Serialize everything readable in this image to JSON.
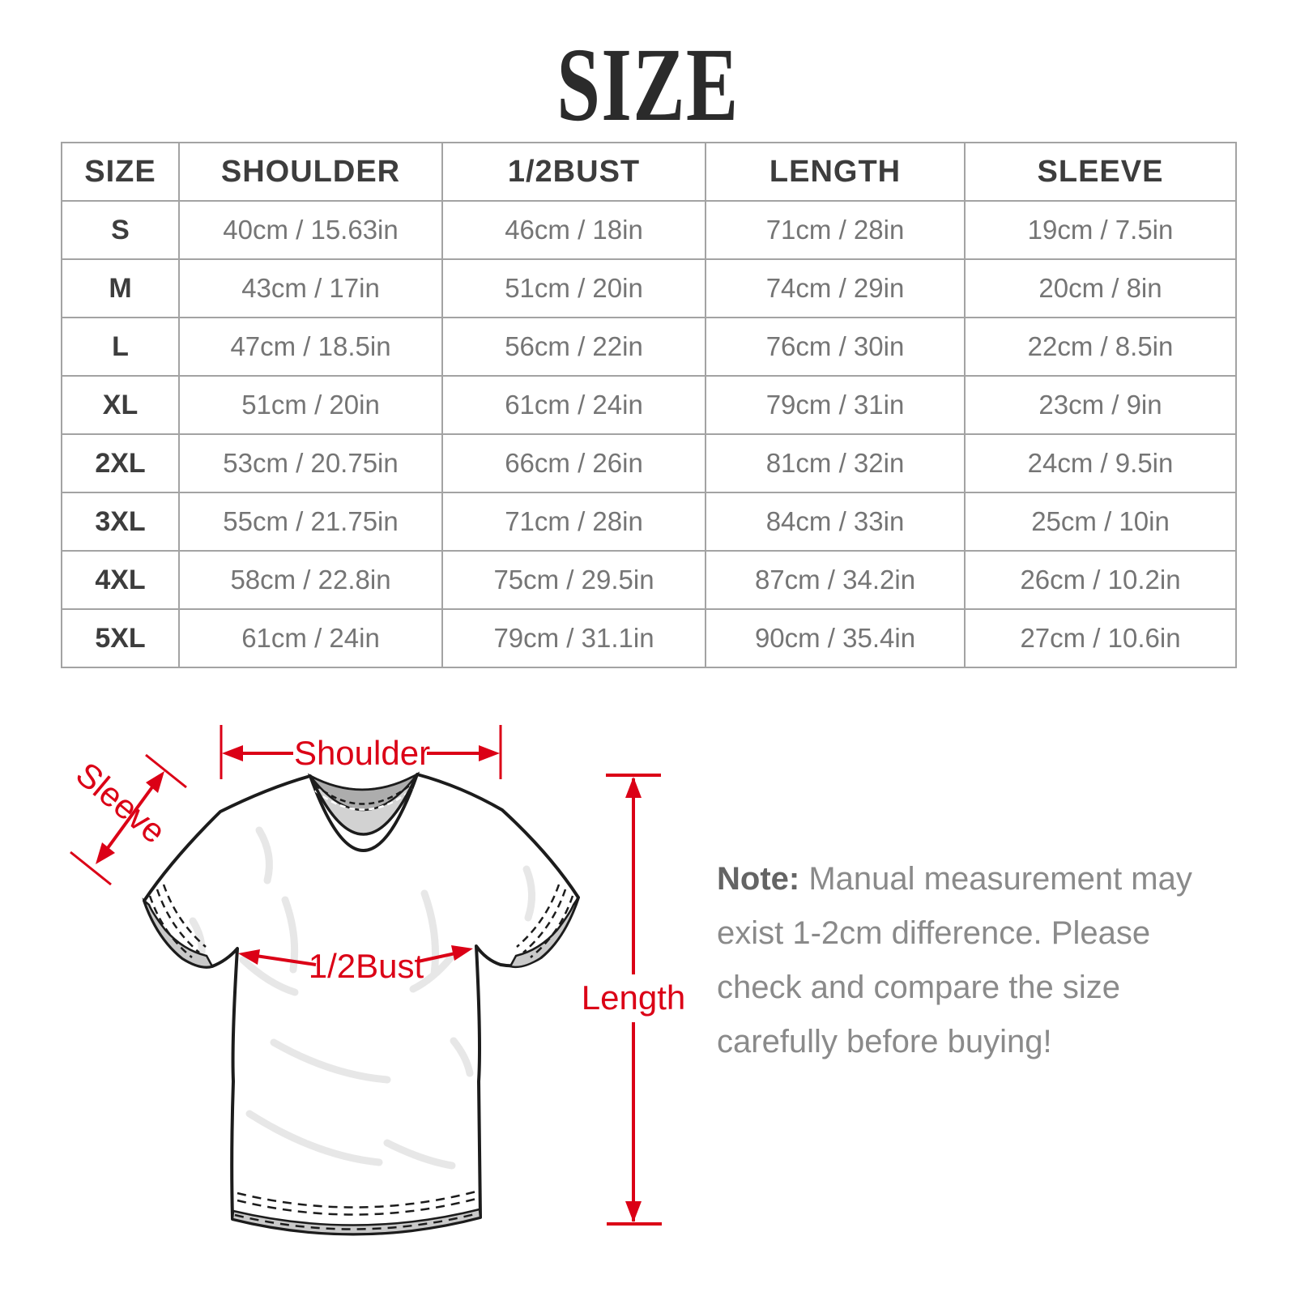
{
  "title": "SIZE",
  "table": {
    "headers": [
      "SIZE",
      "SHOULDER",
      "1/2BUST",
      "LENGTH",
      "SLEEVE"
    ],
    "rows": [
      [
        "S",
        "40cm / 15.63in",
        "46cm / 18in",
        "71cm / 28in",
        "19cm / 7.5in"
      ],
      [
        "M",
        "43cm / 17in",
        "51cm / 20in",
        "74cm / 29in",
        "20cm / 8in"
      ],
      [
        "L",
        "47cm / 18.5in",
        "56cm / 22in",
        "76cm / 30in",
        "22cm / 8.5in"
      ],
      [
        "XL",
        "51cm / 20in",
        "61cm / 24in",
        "79cm / 31in",
        "23cm / 9in"
      ],
      [
        "2XL",
        "53cm / 20.75in",
        "66cm / 26in",
        "81cm / 32in",
        "24cm / 9.5in"
      ],
      [
        "3XL",
        "55cm / 21.75in",
        "71cm / 28in",
        "84cm / 33in",
        "25cm / 10in"
      ],
      [
        "4XL",
        "58cm / 22.8in",
        "75cm / 29.5in",
        "87cm / 34.2in",
        "26cm / 10.2in"
      ],
      [
        "5XL",
        "61cm / 24in",
        "79cm / 31.1in",
        "90cm / 35.4in",
        "27cm / 10.6in"
      ]
    ]
  },
  "diagram": {
    "shoulder_label": "Shoulder",
    "sleeve_label": "Sleeve",
    "bust_label": "1/2Bust",
    "length_label": "Length",
    "annotation_color": "#db0016"
  },
  "note": {
    "label": "Note:",
    "body": " Manual measurement may exist 1-2cm difference. Please check and compare the size carefully before buying!"
  },
  "chart_data": {
    "type": "table",
    "columns": [
      "SIZE",
      "SHOULDER",
      "1/2BUST",
      "LENGTH",
      "SLEEVE"
    ],
    "rows": [
      [
        "S",
        "40cm / 15.63in",
        "46cm / 18in",
        "71cm / 28in",
        "19cm / 7.5in"
      ],
      [
        "M",
        "43cm / 17in",
        "51cm / 20in",
        "74cm / 29in",
        "20cm / 8in"
      ],
      [
        "L",
        "47cm / 18.5in",
        "56cm / 22in",
        "76cm / 30in",
        "22cm / 8.5in"
      ],
      [
        "XL",
        "51cm / 20in",
        "61cm / 24in",
        "79cm / 31in",
        "23cm / 9in"
      ],
      [
        "2XL",
        "53cm / 20.75in",
        "66cm / 26in",
        "81cm / 32in",
        "24cm / 9.5in"
      ],
      [
        "3XL",
        "55cm / 21.75in",
        "71cm / 28in",
        "84cm / 33in",
        "25cm / 10in"
      ],
      [
        "4XL",
        "58cm / 22.8in",
        "75cm / 29.5in",
        "87cm / 34.2in",
        "26cm / 10.2in"
      ],
      [
        "5XL",
        "61cm / 24in",
        "79cm / 31.1in",
        "90cm / 35.4in",
        "27cm / 10.6in"
      ]
    ],
    "title": "SIZE"
  }
}
